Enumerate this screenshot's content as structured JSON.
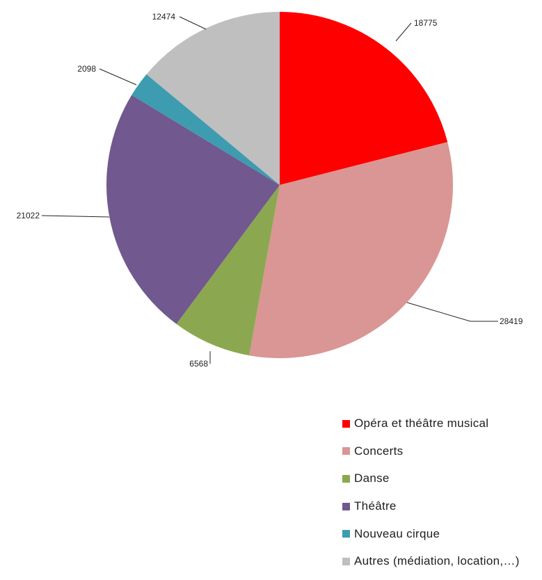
{
  "chart_data": {
    "type": "pie",
    "title": "",
    "categories": [
      "Opéra et théâtre musical",
      "Concerts",
      "Danse",
      "Théâtre",
      "Nouveau cirque",
      "Autres (médiation, location,…)"
    ],
    "values": [
      18775,
      28419,
      6568,
      21022,
      2098,
      12474
    ],
    "colors": [
      "#ff0000",
      "#d99694",
      "#8ba850",
      "#71588f",
      "#3e9cb0",
      "#bfbfbf"
    ],
    "start_angle": "12 o'clock",
    "direction": "clockwise",
    "legend_position": "bottom-right",
    "data_labels": "outside with leader lines"
  }
}
